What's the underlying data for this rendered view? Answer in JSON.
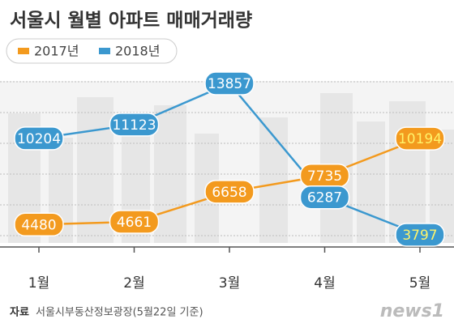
{
  "chart_data": {
    "type": "line",
    "title": "서울시 월별 아파트 매매거래량",
    "categories": [
      "1월",
      "2월",
      "3월",
      "4월",
      "5월"
    ],
    "series": [
      {
        "name": "2017년",
        "color": "#f39a1e",
        "values": [
          4480,
          4661,
          6658,
          7735,
          10194
        ]
      },
      {
        "name": "2018년",
        "color": "#3b98cf",
        "values": [
          10204,
          11123,
          13857,
          6287,
          3797
        ]
      }
    ],
    "source_label": "자료",
    "source": "서울시부동산정보광장(5월22일 기준)",
    "logo": "news1"
  }
}
